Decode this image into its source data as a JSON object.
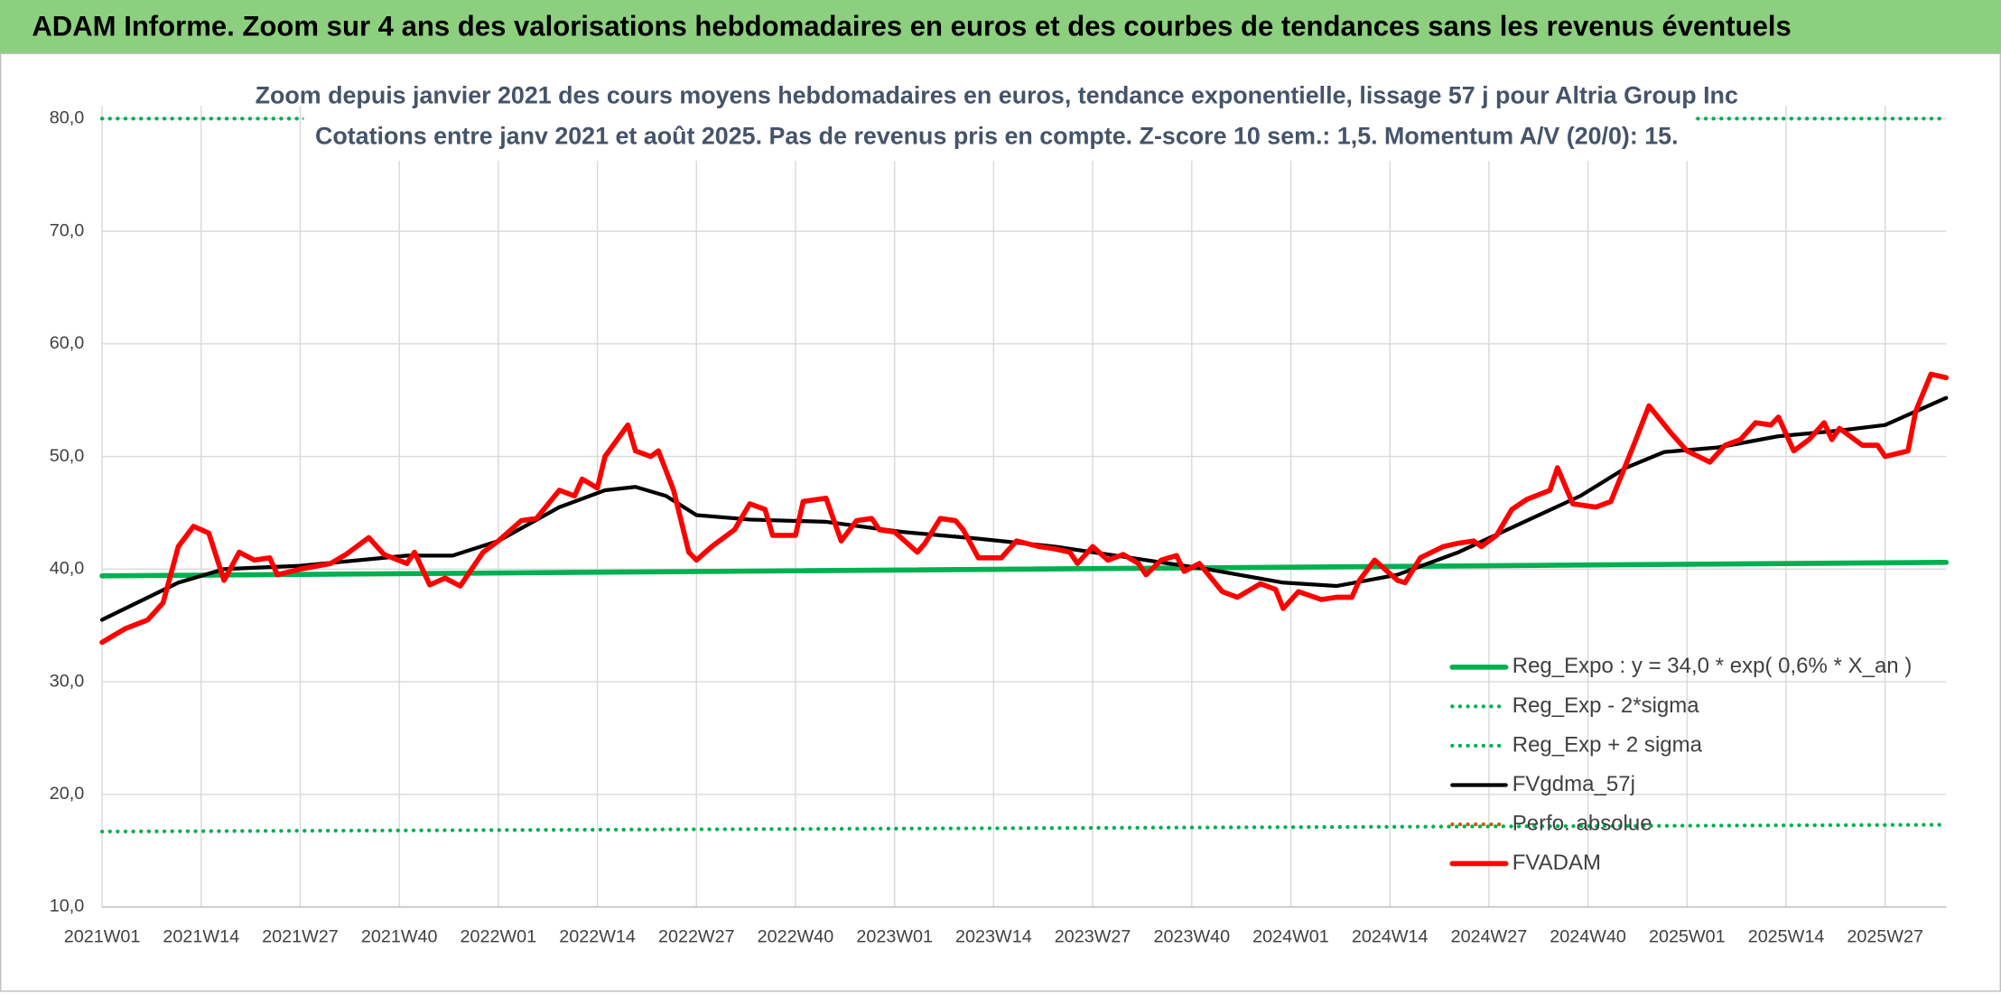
{
  "header": "ADAM Informe. Zoom sur 4 ans des valorisations hebdomadaires en euros et des courbes de tendances sans les revenus éventuels",
  "chart_data": {
    "type": "line",
    "title": "Zoom depuis janvier 2021 des cours moyens hebdomadaires en euros, tendance exponentielle, lissage 57 j pour Altria Group Inc",
    "subtitle": "Cotations entre janv 2021 et août 2025. Pas de revenus pris en compte. Z-score 10 sem.: 1,5. Momentum A/V (20/0): 15.",
    "xlim": [
      0,
      242
    ],
    "xticks": [
      {
        "value": 0,
        "label": "2021W01"
      },
      {
        "value": 13,
        "label": "2021W14"
      },
      {
        "value": 26,
        "label": "2021W27"
      },
      {
        "value": 39,
        "label": "2021W40"
      },
      {
        "value": 52,
        "label": "2022W01"
      },
      {
        "value": 65,
        "label": "2022W14"
      },
      {
        "value": 78,
        "label": "2022W27"
      },
      {
        "value": 91,
        "label": "2022W40"
      },
      {
        "value": 104,
        "label": "2023W01"
      },
      {
        "value": 117,
        "label": "2023W14"
      },
      {
        "value": 130,
        "label": "2023W27"
      },
      {
        "value": 143,
        "label": "2023W40"
      },
      {
        "value": 156,
        "label": "2024W01"
      },
      {
        "value": 169,
        "label": "2024W14"
      },
      {
        "value": 182,
        "label": "2024W27"
      },
      {
        "value": 195,
        "label": "2024W40"
      },
      {
        "value": 208,
        "label": "2025W01"
      },
      {
        "value": 221,
        "label": "2025W14"
      },
      {
        "value": 234,
        "label": "2025W27"
      }
    ],
    "ylim": [
      10,
      80
    ],
    "yticks": [
      {
        "value": 10,
        "label": "10,0"
      },
      {
        "value": 20,
        "label": "20,0"
      },
      {
        "value": 30,
        "label": "30,0"
      },
      {
        "value": 40,
        "label": "40,0"
      },
      {
        "value": 50,
        "label": "50,0"
      },
      {
        "value": 60,
        "label": "60,0"
      },
      {
        "value": 70,
        "label": "70,0"
      },
      {
        "value": 80,
        "label": "80,0"
      }
    ],
    "grid": true,
    "legend": "lower right",
    "series": [
      {
        "name": "Reg_Expo : y = 34,0 * exp( 0,6% *  X_an )",
        "color": "#00b050",
        "style": "solid",
        "width": 4,
        "x": [
          0,
          242
        ],
        "values": [
          39.4,
          40.6
        ]
      },
      {
        "name": "Reg_Exp - 2*sigma",
        "color": "#00b050",
        "style": "dotted",
        "width": 3,
        "x": [
          0,
          242
        ],
        "values": [
          16.7,
          17.3
        ]
      },
      {
        "name": "Reg_Exp + 2 sigma",
        "color": "#00b050",
        "style": "dotted",
        "width": 3,
        "x": [
          0,
          242
        ],
        "values": [
          80,
          80
        ]
      },
      {
        "name": "FVgdma_57j",
        "color": "#000000",
        "style": "solid",
        "width": 3,
        "x": [
          0,
          10,
          16,
          26,
          40,
          46,
          52,
          60,
          66,
          70,
          74,
          78,
          85,
          95,
          105,
          115,
          125,
          135,
          145,
          155,
          162,
          170,
          178,
          186,
          194,
          200,
          205,
          212,
          220,
          228,
          234,
          238,
          242
        ],
        "values": [
          35.5,
          38.8,
          40,
          40.3,
          41.2,
          41.2,
          42.5,
          45.5,
          47,
          47.3,
          46.5,
          44.8,
          44.4,
          44.2,
          43.3,
          42.7,
          42,
          41,
          40,
          38.8,
          38.5,
          39.5,
          41.5,
          44,
          46.5,
          49,
          50.4,
          50.8,
          51.8,
          52.3,
          52.8,
          54,
          55.2
        ]
      },
      {
        "name": "Perfo. absolue",
        "color": "#c55a11",
        "style": "dotted",
        "width": 3,
        "x": [],
        "values": []
      },
      {
        "name": "FVADAM",
        "color": "#ff0000",
        "style": "solid",
        "width": 4,
        "x": [
          0,
          3,
          6,
          8,
          10,
          12,
          14,
          16,
          18,
          20,
          22,
          23,
          26,
          30,
          32,
          35,
          37,
          40,
          41,
          43,
          45,
          47,
          50,
          52,
          55,
          57,
          60,
          62,
          63,
          65,
          66,
          69,
          70,
          72,
          73,
          75,
          77,
          78,
          80,
          82,
          83,
          85,
          87,
          88,
          91,
          92,
          95,
          97,
          99,
          101,
          102,
          104,
          107,
          108,
          110,
          112,
          113,
          115,
          118,
          120,
          123,
          125,
          127,
          128,
          130,
          132,
          134,
          136,
          137,
          139,
          141,
          142,
          144,
          147,
          149,
          152,
          154,
          155,
          157,
          160,
          162,
          164,
          165,
          167,
          170,
          171,
          173,
          176,
          178,
          180,
          181,
          183,
          185,
          187,
          190,
          191,
          193,
          196,
          198,
          201,
          203,
          206,
          208,
          211,
          213,
          215,
          217,
          219,
          220,
          222,
          224,
          226,
          227,
          228,
          231,
          233,
          234,
          237,
          238,
          240,
          242
        ],
        "values": [
          33.5,
          34.7,
          35.5,
          37,
          42,
          43.8,
          43.2,
          39,
          41.5,
          40.8,
          41,
          39.5,
          40,
          40.5,
          41.3,
          42.8,
          41.3,
          40.5,
          41.5,
          38.6,
          39.2,
          38.5,
          41.5,
          42.5,
          44.3,
          44.5,
          47,
          46.5,
          48,
          47.2,
          50,
          52.8,
          50.5,
          50,
          50.5,
          47,
          41.5,
          40.8,
          42,
          43,
          43.5,
          45.8,
          45.3,
          43,
          43,
          46,
          46.3,
          42.5,
          44.3,
          44.5,
          43.5,
          43.3,
          41.5,
          42.3,
          44.5,
          44.3,
          43.5,
          41,
          41,
          42.5,
          42,
          41.8,
          41.5,
          40.5,
          42,
          40.8,
          41.3,
          40.5,
          39.5,
          40.8,
          41.2,
          39.8,
          40.5,
          38,
          37.5,
          38.7,
          38.2,
          36.5,
          38,
          37.3,
          37.5,
          37.5,
          39,
          40.8,
          39,
          38.8,
          41,
          42,
          42.3,
          42.5,
          42,
          43,
          45.3,
          46.2,
          47,
          49,
          45.8,
          45.5,
          46,
          51,
          54.5,
          52,
          50.5,
          49.5,
          51,
          51.5,
          53,
          52.8,
          53.5,
          50.5,
          51.5,
          53,
          51.5,
          52.5,
          51,
          51,
          50,
          50.5,
          54,
          57.3,
          57
        ]
      }
    ]
  }
}
